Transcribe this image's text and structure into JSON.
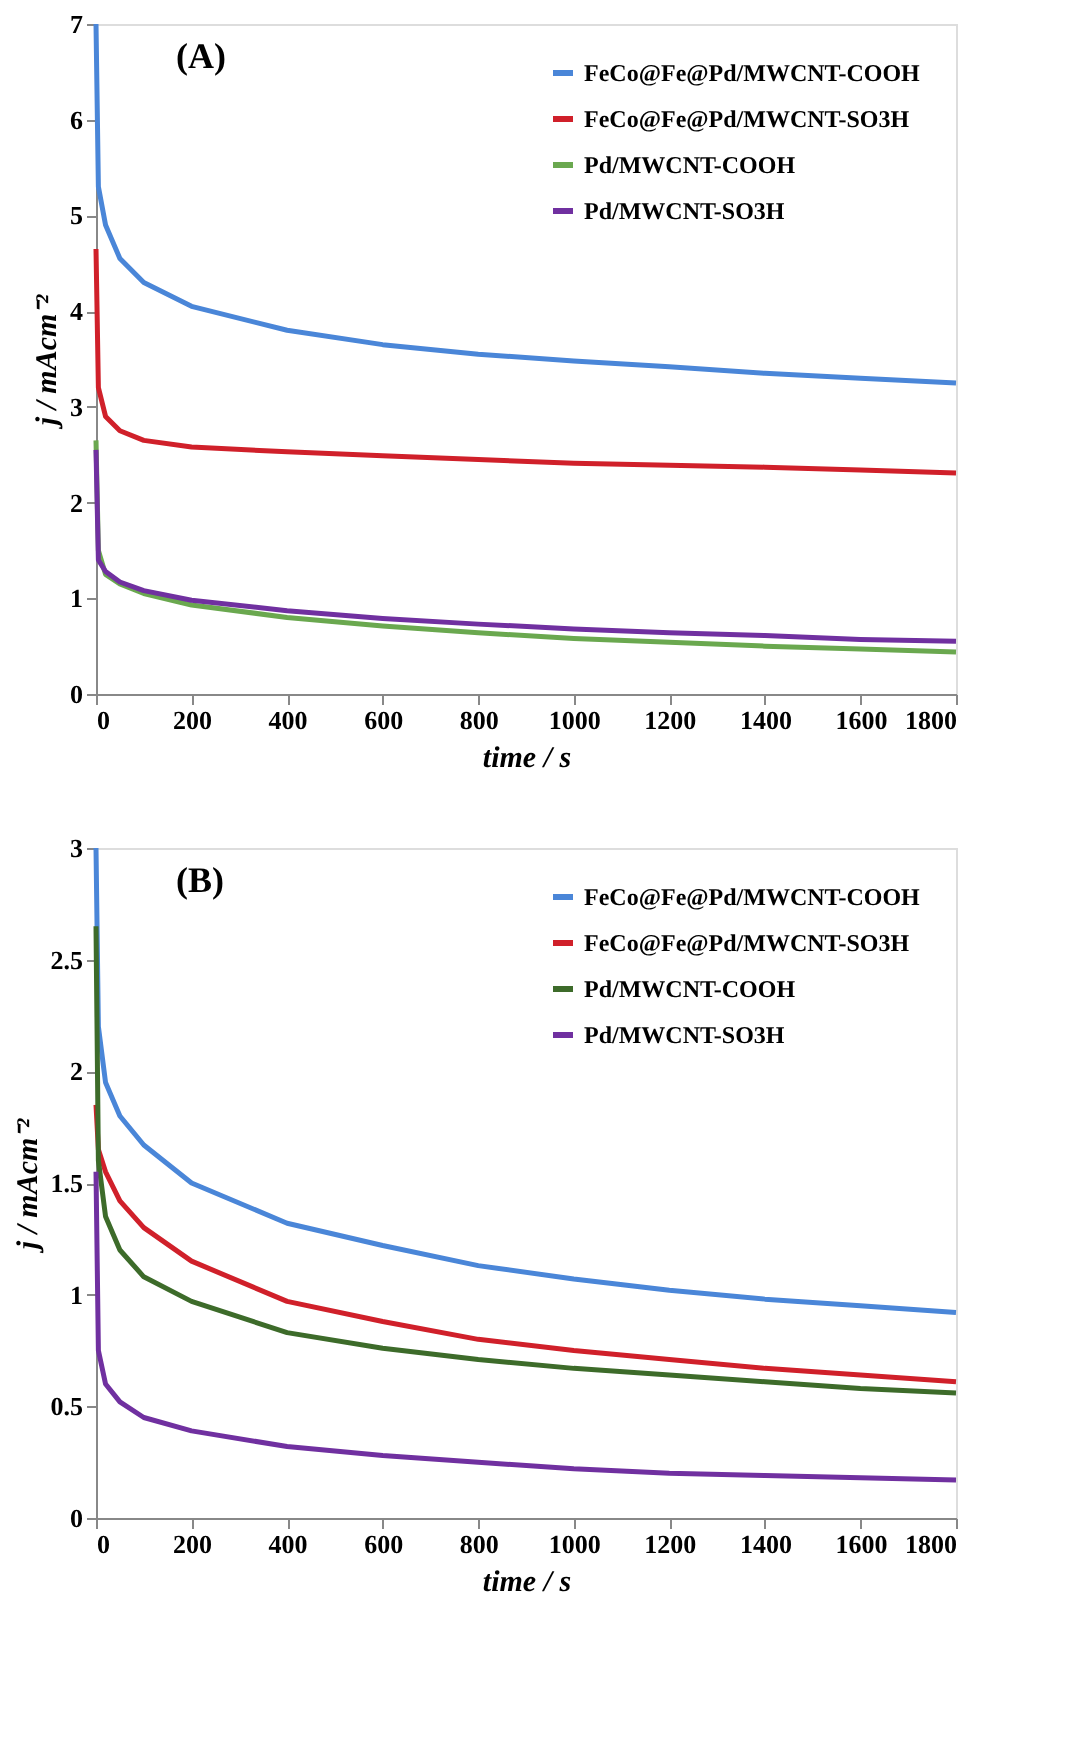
{
  "chart_data": [
    {
      "type": "line",
      "title": "(A)",
      "xlabel": "time / s",
      "ylabel": "j / mAcm⁻²",
      "xlim": [
        0,
        1800
      ],
      "xticks": [
        0,
        200,
        400,
        600,
        800,
        1000,
        1200,
        1400,
        1600,
        1800
      ],
      "ylim": [
        0,
        7
      ],
      "yticks": [
        0,
        1,
        2,
        3,
        4,
        5,
        6,
        7
      ],
      "grid": false,
      "legend": "top right",
      "marker": "none",
      "line_style": "solid",
      "x": [
        0,
        5,
        20,
        50,
        100,
        200,
        400,
        600,
        800,
        1000,
        1200,
        1400,
        1600,
        1800
      ],
      "series": [
        {
          "name": "FeCo@Fe@Pd/MWCNT-COOH",
          "color": "#4a86d8",
          "values": [
            7,
            5.3,
            4.9,
            4.55,
            4.3,
            4.05,
            3.8,
            3.65,
            3.55,
            3.48,
            3.42,
            3.35,
            3.3,
            3.25
          ]
        },
        {
          "name": "FeCo@Fe@Pd/MWCNT-SO3H",
          "color": "#d0202a",
          "values": [
            4.65,
            3.2,
            2.9,
            2.75,
            2.65,
            2.58,
            2.53,
            2.49,
            2.45,
            2.41,
            2.39,
            2.37,
            2.34,
            2.31
          ]
        },
        {
          "name": "Pd/MWCNT-COOH",
          "color": "#6aa84f",
          "values": [
            2.65,
            1.5,
            1.25,
            1.15,
            1.05,
            0.93,
            0.8,
            0.71,
            0.64,
            0.58,
            0.54,
            0.5,
            0.47,
            0.44
          ]
        },
        {
          "name": "Pd/MWCNT-SO3H",
          "color": "#7030a0",
          "values": [
            2.55,
            1.4,
            1.28,
            1.17,
            1.08,
            0.98,
            0.87,
            0.79,
            0.73,
            0.68,
            0.64,
            0.61,
            0.57,
            0.55
          ]
        }
      ]
    },
    {
      "type": "line",
      "title": "(B)",
      "xlabel": "time / s",
      "ylabel": "j / mAcm⁻²",
      "xlim": [
        0,
        1800
      ],
      "xticks": [
        0,
        200,
        400,
        600,
        800,
        1000,
        1200,
        1400,
        1600,
        1800
      ],
      "ylim": [
        0,
        3
      ],
      "yticks": [
        0,
        0.5,
        1,
        1.5,
        2,
        2.5,
        3
      ],
      "grid": false,
      "legend": "top right",
      "marker": "none",
      "line_style": "solid",
      "x": [
        0,
        5,
        20,
        50,
        100,
        200,
        400,
        600,
        800,
        1000,
        1200,
        1400,
        1600,
        1800
      ],
      "series": [
        {
          "name": "FeCo@Fe@Pd/MWCNT-COOH",
          "color": "#4a86d8",
          "values": [
            3.0,
            2.2,
            1.95,
            1.8,
            1.67,
            1.5,
            1.32,
            1.22,
            1.13,
            1.07,
            1.02,
            0.98,
            0.95,
            0.92
          ]
        },
        {
          "name": "FeCo@Fe@Pd/MWCNT-SO3H",
          "color": "#d0202a",
          "values": [
            1.85,
            1.65,
            1.55,
            1.42,
            1.3,
            1.15,
            0.97,
            0.88,
            0.8,
            0.75,
            0.71,
            0.67,
            0.64,
            0.61
          ]
        },
        {
          "name": "Pd/MWCNT-COOH",
          "color": "#3d6b2a",
          "values": [
            2.65,
            1.6,
            1.35,
            1.2,
            1.08,
            0.97,
            0.83,
            0.76,
            0.71,
            0.67,
            0.64,
            0.61,
            0.58,
            0.56
          ]
        },
        {
          "name": "Pd/MWCNT-SO3H",
          "color": "#7030a0",
          "values": [
            1.55,
            0.75,
            0.6,
            0.52,
            0.45,
            0.39,
            0.32,
            0.28,
            0.25,
            0.22,
            0.2,
            0.19,
            0.18,
            0.17
          ]
        }
      ]
    }
  ]
}
